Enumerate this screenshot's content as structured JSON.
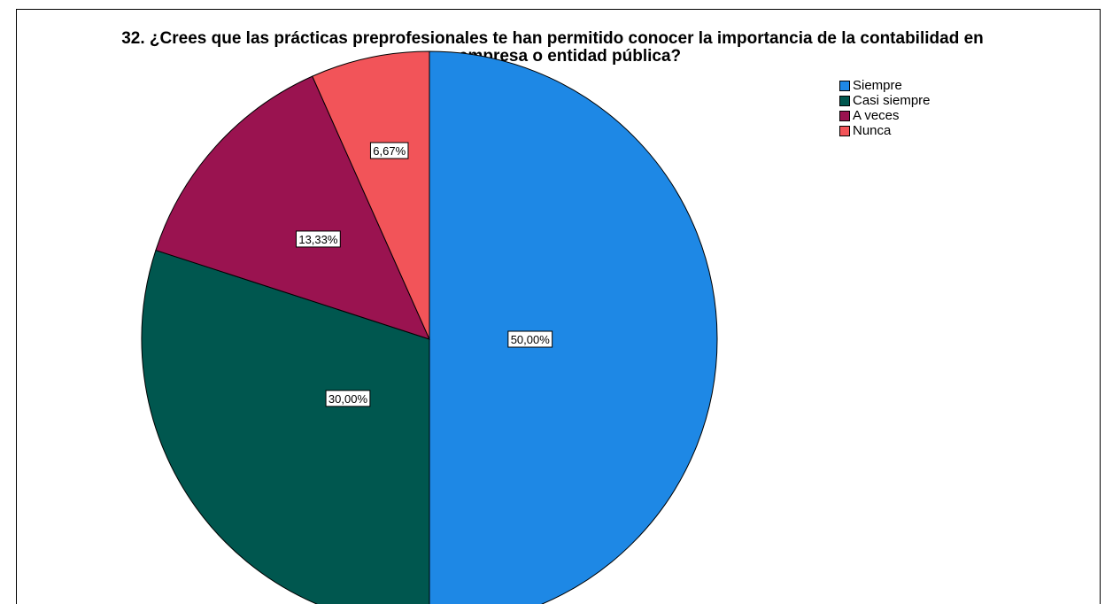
{
  "chart_data": {
    "type": "pie",
    "title_lines": [
      "32. ¿Crees que las prácticas preprofesionales te han permitido conocer la importancia de la contabilidad en",
      "una empresa o entidad pública?"
    ],
    "categories": [
      "Siempre",
      "Casi siempre",
      "A veces",
      "Nunca"
    ],
    "values": [
      50.0,
      30.0,
      13.33,
      6.67
    ],
    "labels": [
      "50,00%",
      "30,00%",
      "13,33%",
      "6,67%"
    ],
    "colors": [
      "#1e88e5",
      "#00574f",
      "#9a1350",
      "#f25459"
    ],
    "legend_position": "top-right",
    "start": "12 o'clock",
    "direction": "clockwise"
  }
}
